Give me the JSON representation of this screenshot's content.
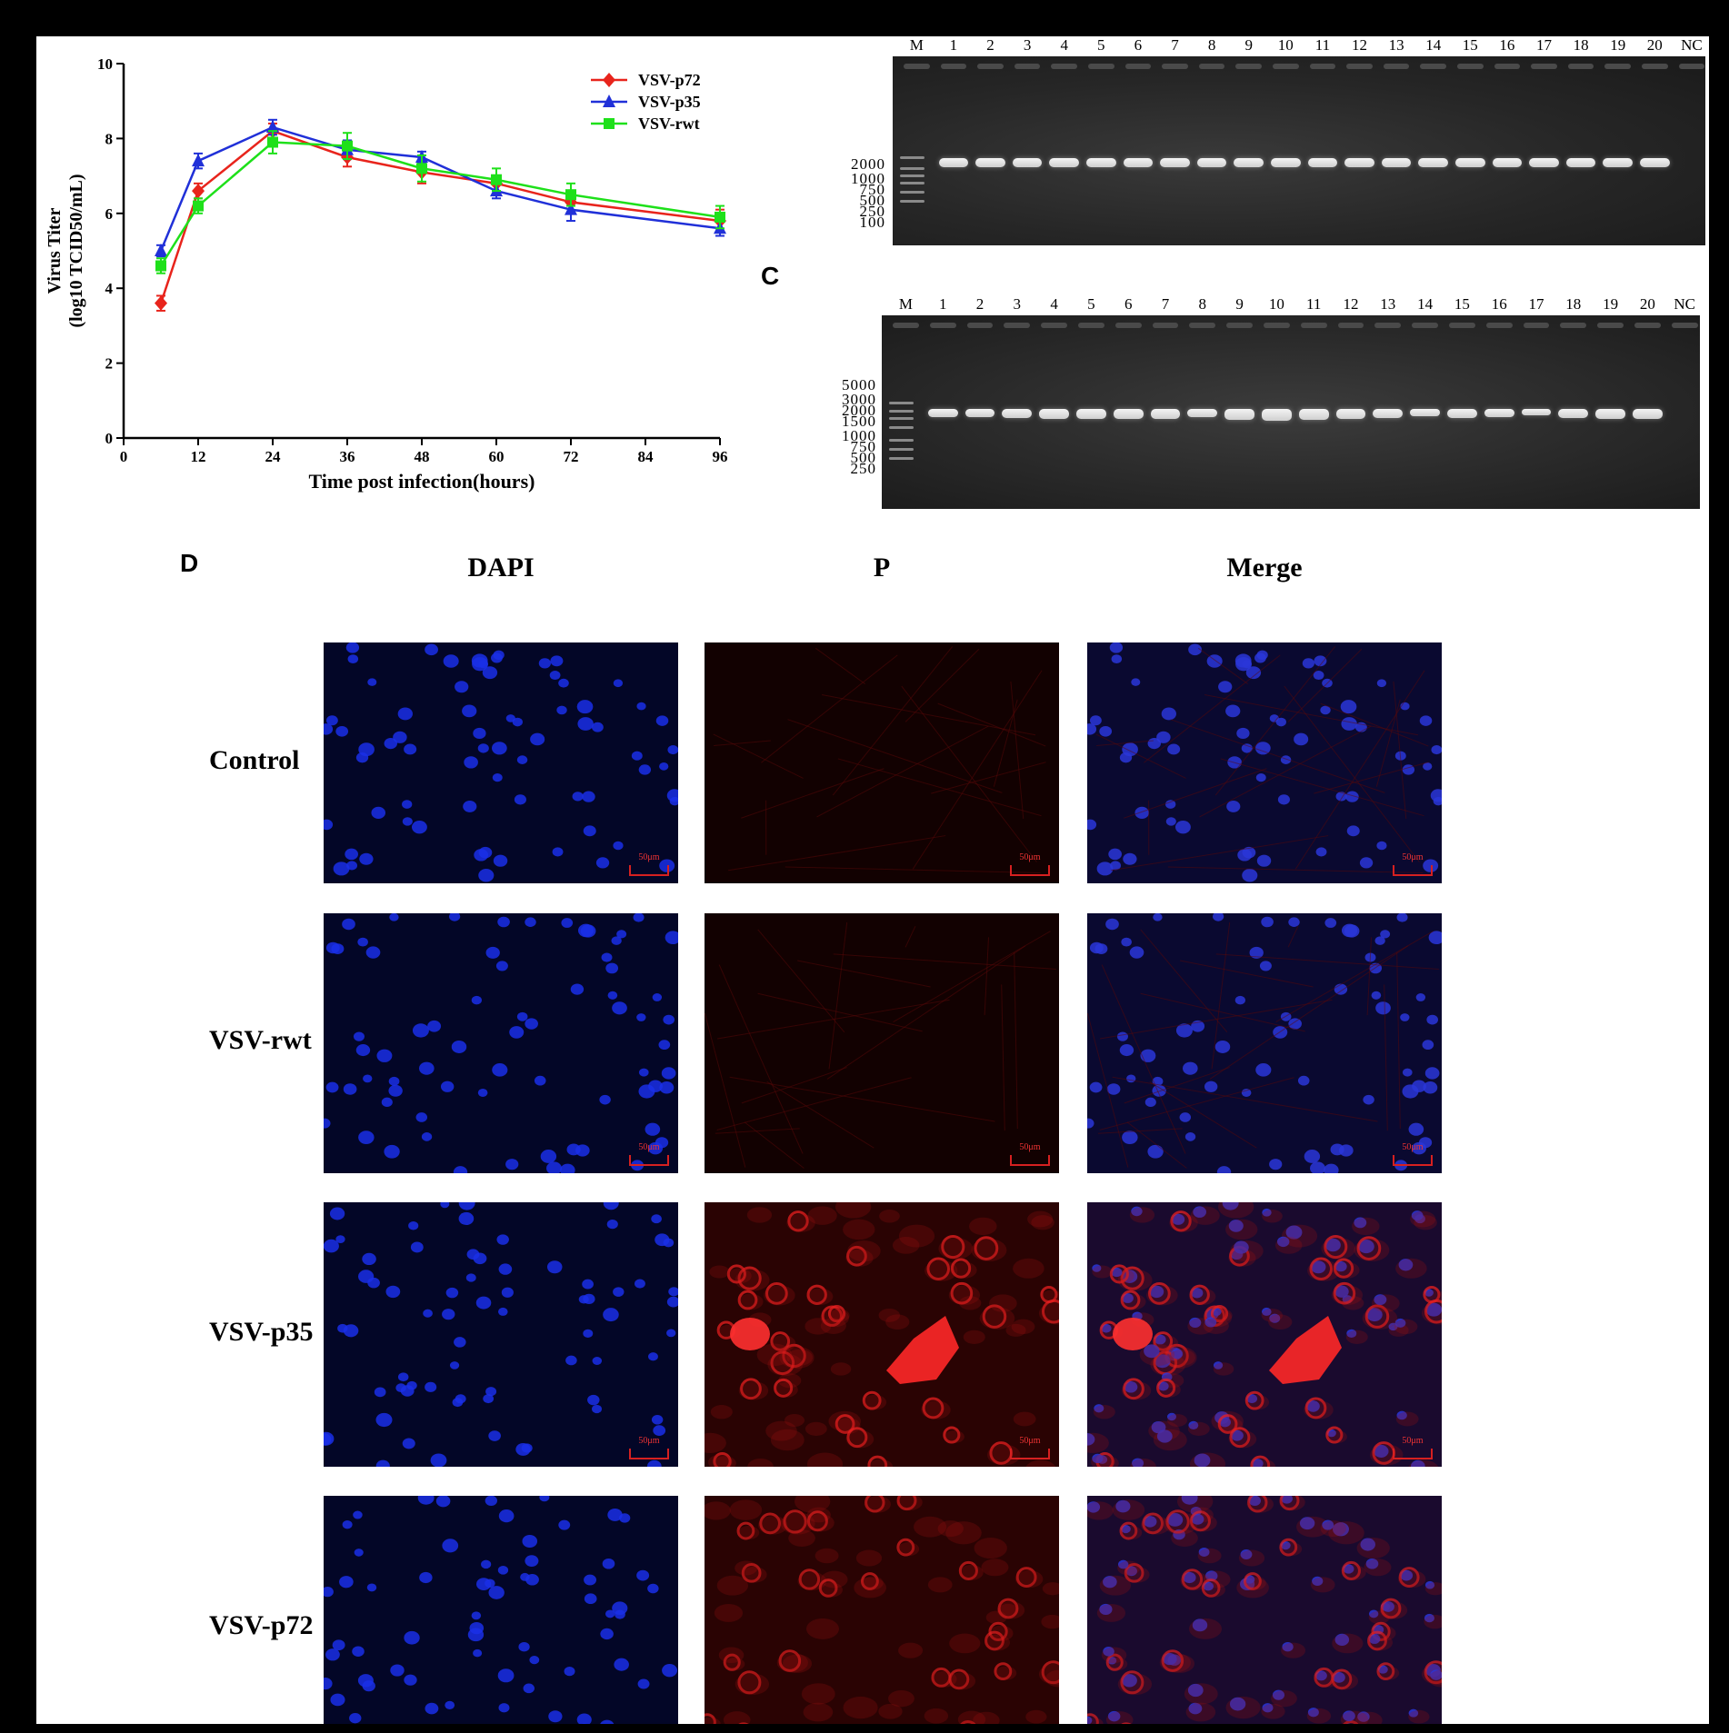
{
  "chart_data": {
    "type": "line",
    "xlabel": "Time post infection(hours)",
    "ylabel": "Virus Titer",
    "ylabel2": "(log10 TCID50/mL)",
    "x": [
      6,
      12,
      24,
      36,
      48,
      60,
      72,
      96
    ],
    "xlim": [
      0,
      96
    ],
    "ylim": [
      0,
      10
    ],
    "xticks": [
      0,
      12,
      24,
      36,
      48,
      60,
      72,
      84,
      96
    ],
    "yticks": [
      0,
      2,
      4,
      6,
      8,
      10
    ],
    "legend_position": "top-right",
    "series": [
      {
        "name": "VSV-p72",
        "color": "#e8241c",
        "marker": "diamond",
        "values": [
          3.6,
          6.6,
          8.2,
          7.5,
          7.1,
          6.8,
          6.3,
          5.8
        ],
        "err": [
          0.2,
          0.2,
          0.2,
          0.25,
          0.3,
          0.2,
          0.3,
          0.3
        ]
      },
      {
        "name": "VSV-p35",
        "color": "#2030d8",
        "marker": "triangle",
        "values": [
          5.0,
          7.4,
          8.3,
          7.7,
          7.5,
          6.6,
          6.1,
          5.6
        ],
        "err": [
          0.15,
          0.2,
          0.2,
          0.25,
          0.15,
          0.2,
          0.3,
          0.2
        ]
      },
      {
        "name": "VSV-rwt",
        "color": "#1ee01a",
        "marker": "square",
        "values": [
          4.6,
          6.2,
          7.9,
          7.8,
          7.2,
          6.9,
          6.5,
          5.9
        ],
        "err": [
          0.2,
          0.2,
          0.3,
          0.35,
          0.35,
          0.3,
          0.3,
          0.3
        ]
      }
    ]
  },
  "gelB": {
    "lanes": [
      "M",
      "1",
      "2",
      "3",
      "4",
      "5",
      "6",
      "7",
      "8",
      "9",
      "10",
      "11",
      "12",
      "13",
      "14",
      "15",
      "16",
      "17",
      "18",
      "19",
      "20",
      "NC"
    ],
    "markers": [
      "2000",
      "1000",
      "750",
      "500",
      "250",
      "100"
    ]
  },
  "gelC": {
    "letter": "C",
    "lanes": [
      "M",
      "1",
      "2",
      "3",
      "4",
      "5",
      "6",
      "7",
      "8",
      "9",
      "10",
      "11",
      "12",
      "13",
      "14",
      "15",
      "16",
      "17",
      "18",
      "19",
      "20",
      "NC"
    ],
    "markers": [
      "5000",
      "3000",
      "2000",
      "1500",
      "1000",
      "750",
      "500",
      "250"
    ]
  },
  "panelD": {
    "letter": "D",
    "columns": [
      "DAPI",
      "P",
      "Merge"
    ],
    "rows": [
      "Control",
      "VSV-rwt",
      "VSV-p35",
      "VSV-p72"
    ],
    "scale_bar": "50μm"
  }
}
